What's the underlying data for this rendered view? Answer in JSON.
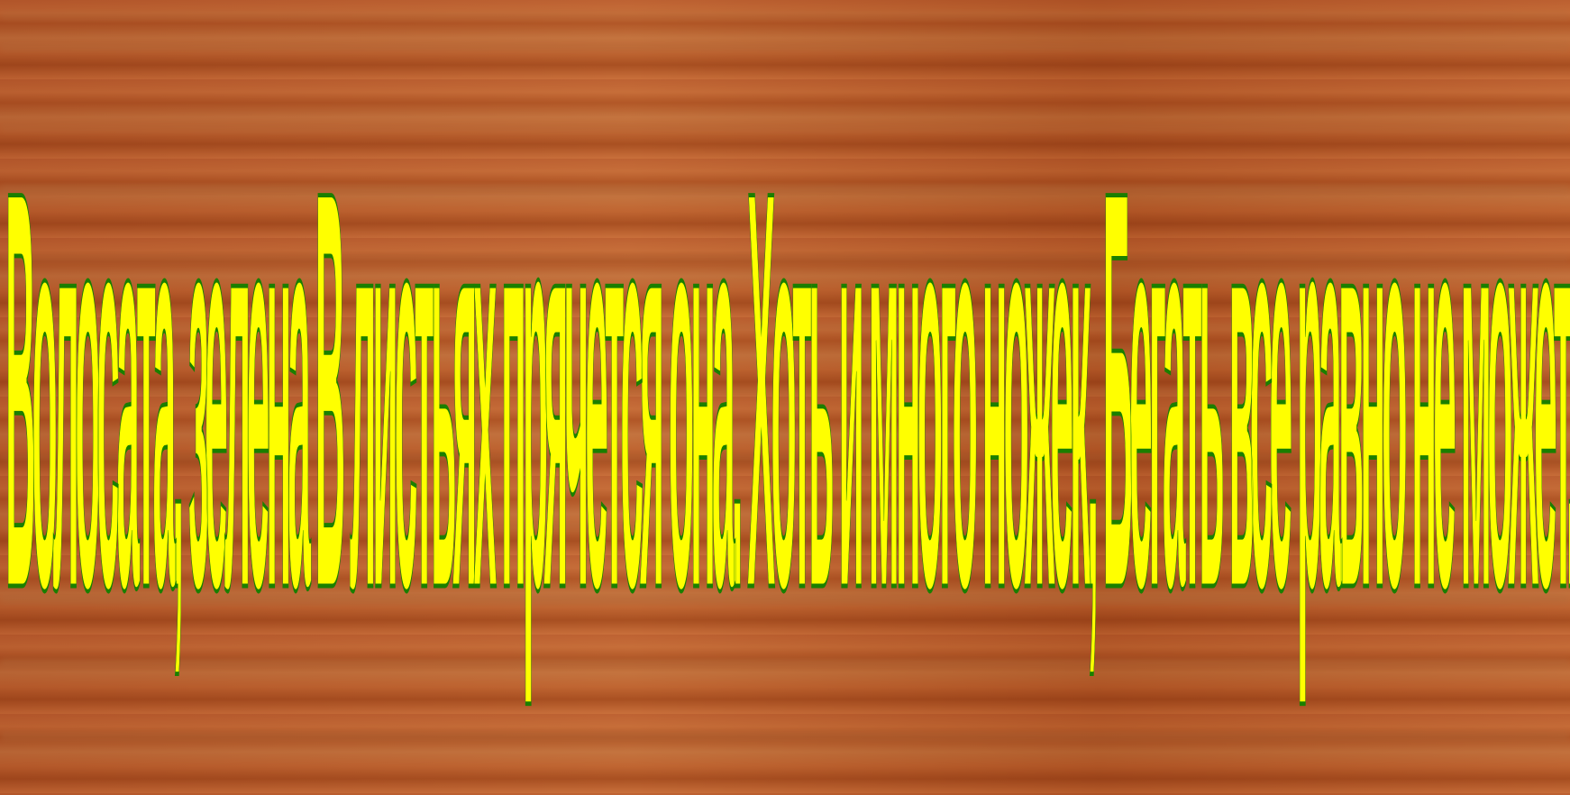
{
  "text_line": "Волосата, зелена В листьях прячется она. Хоть и много ножек, Бегать все равно не может.",
  "colors": {
    "fill": "#ffff00",
    "stroke": "#1a7f00",
    "background": "wood"
  }
}
